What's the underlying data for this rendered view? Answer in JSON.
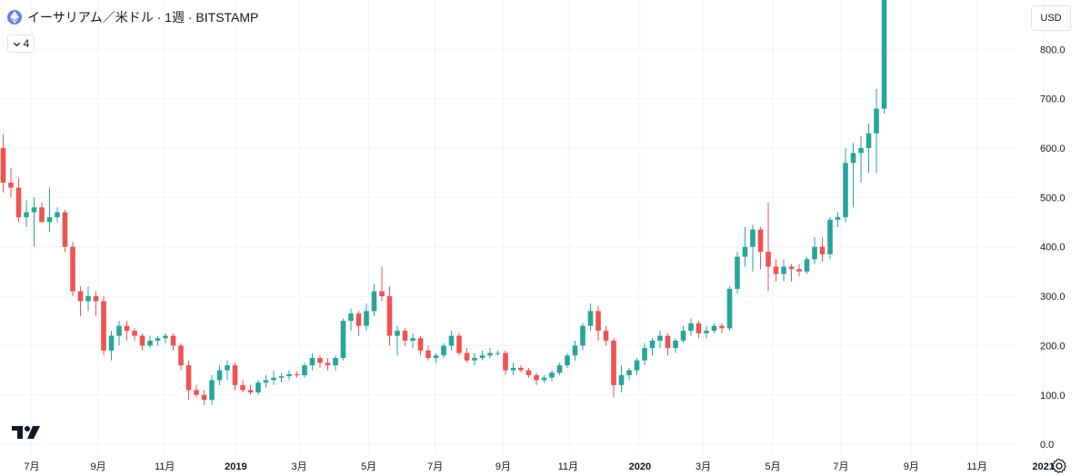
{
  "header": {
    "title": "イーサリアム／米ドル · 1週 · BITSTAMP",
    "indicator_count": "4",
    "currency": "USD"
  },
  "colors": {
    "up": "#26a69a",
    "down": "#ef5350",
    "grid": "#f0f3fa",
    "text": "#131722",
    "coin": "#627eea"
  },
  "icons": {
    "coin": "ethereum-icon",
    "collapse": "chevron-down-icon",
    "logo": "tradingview-logo-icon",
    "settings": "settings-icon"
  },
  "chart_data": {
    "type": "candlestick",
    "interval": "1週",
    "y_axis": {
      "ticks": [
        0,
        100,
        200,
        300,
        400,
        500,
        600,
        700,
        800
      ],
      "labels": [
        "0.0",
        "100.0",
        "200.0",
        "300.0",
        "400.0",
        "500.0",
        "600.0",
        "700.0",
        "800.0"
      ],
      "range": [
        -20,
        900
      ]
    },
    "x_axis": {
      "labels": [
        "7月",
        "9月",
        "11月",
        "2019",
        "3月",
        "5月",
        "7月",
        "9月",
        "11月",
        "2020",
        "3月",
        "5月",
        "7月",
        "9月",
        "11月",
        "2021"
      ],
      "bold": [
        "2019",
        "2020",
        "2021"
      ],
      "label_after_weeks": [
        3.7,
        12.3,
        20.9,
        30.1,
        38.3,
        47.3,
        55.9,
        64.7,
        73.1,
        82.4,
        90.6,
        99.6,
        108.4,
        117.5,
        126.0,
        134.6
      ]
    },
    "ohlc": [
      [
        600,
        628,
        510,
        530
      ],
      [
        530,
        560,
        500,
        520
      ],
      [
        520,
        540,
        450,
        460
      ],
      [
        460,
        495,
        440,
        470
      ],
      [
        470,
        500,
        400,
        480
      ],
      [
        480,
        490,
        450,
        450
      ],
      [
        450,
        520,
        430,
        460
      ],
      [
        460,
        480,
        450,
        470
      ],
      [
        470,
        475,
        390,
        400
      ],
      [
        400,
        410,
        300,
        310
      ],
      [
        310,
        320,
        260,
        290
      ],
      [
        290,
        320,
        270,
        300
      ],
      [
        300,
        310,
        260,
        290
      ],
      [
        290,
        300,
        180,
        190
      ],
      [
        190,
        230,
        170,
        220
      ],
      [
        220,
        250,
        200,
        240
      ],
      [
        240,
        250,
        210,
        230
      ],
      [
        230,
        235,
        210,
        220
      ],
      [
        220,
        225,
        190,
        200
      ],
      [
        200,
        220,
        195,
        210
      ],
      [
        210,
        220,
        200,
        215
      ],
      [
        215,
        225,
        205,
        220
      ],
      [
        220,
        225,
        190,
        200
      ],
      [
        200,
        205,
        150,
        160
      ],
      [
        160,
        170,
        90,
        110
      ],
      [
        110,
        120,
        95,
        100
      ],
      [
        100,
        110,
        80,
        90
      ],
      [
        90,
        140,
        80,
        130
      ],
      [
        130,
        160,
        120,
        150
      ],
      [
        150,
        170,
        130,
        160
      ],
      [
        160,
        165,
        110,
        120
      ],
      [
        120,
        130,
        105,
        110
      ],
      [
        110,
        120,
        100,
        105
      ],
      [
        105,
        130,
        100,
        125
      ],
      [
        125,
        140,
        115,
        130
      ],
      [
        130,
        150,
        120,
        135
      ],
      [
        135,
        145,
        125,
        138
      ],
      [
        138,
        150,
        130,
        142
      ],
      [
        142,
        148,
        135,
        140
      ],
      [
        140,
        165,
        135,
        160
      ],
      [
        160,
        185,
        150,
        175
      ],
      [
        175,
        180,
        155,
        165
      ],
      [
        165,
        175,
        150,
        160
      ],
      [
        160,
        180,
        150,
        175
      ],
      [
        175,
        255,
        170,
        250
      ],
      [
        250,
        275,
        230,
        265
      ],
      [
        265,
        270,
        220,
        240
      ],
      [
        240,
        285,
        230,
        270
      ],
      [
        270,
        325,
        260,
        310
      ],
      [
        310,
        360,
        290,
        300
      ],
      [
        300,
        320,
        200,
        220
      ],
      [
        220,
        240,
        180,
        230
      ],
      [
        230,
        235,
        200,
        210
      ],
      [
        210,
        225,
        195,
        215
      ],
      [
        215,
        220,
        180,
        190
      ],
      [
        190,
        200,
        170,
        175
      ],
      [
        175,
        185,
        165,
        180
      ],
      [
        180,
        205,
        175,
        200
      ],
      [
        200,
        230,
        190,
        220
      ],
      [
        220,
        225,
        180,
        185
      ],
      [
        185,
        195,
        165,
        170
      ],
      [
        170,
        185,
        160,
        175
      ],
      [
        175,
        190,
        170,
        180
      ],
      [
        180,
        195,
        175,
        185
      ],
      [
        185,
        190,
        180,
        185
      ],
      [
        185,
        190,
        140,
        150
      ],
      [
        150,
        165,
        140,
        155
      ],
      [
        155,
        160,
        145,
        150
      ],
      [
        150,
        155,
        135,
        140
      ],
      [
        140,
        145,
        120,
        130
      ],
      [
        130,
        140,
        125,
        135
      ],
      [
        135,
        150,
        128,
        145
      ],
      [
        145,
        165,
        140,
        160
      ],
      [
        160,
        185,
        155,
        180
      ],
      [
        180,
        210,
        170,
        200
      ],
      [
        200,
        245,
        190,
        240
      ],
      [
        240,
        285,
        230,
        270
      ],
      [
        270,
        280,
        210,
        230
      ],
      [
        230,
        240,
        200,
        210
      ],
      [
        210,
        215,
        95,
        120
      ],
      [
        120,
        160,
        105,
        140
      ],
      [
        140,
        155,
        130,
        150
      ],
      [
        150,
        175,
        140,
        170
      ],
      [
        170,
        205,
        160,
        195
      ],
      [
        195,
        215,
        180,
        210
      ],
      [
        210,
        230,
        195,
        220
      ],
      [
        220,
        225,
        180,
        195
      ],
      [
        195,
        215,
        185,
        210
      ],
      [
        210,
        240,
        205,
        230
      ],
      [
        230,
        255,
        220,
        245
      ],
      [
        245,
        250,
        215,
        225
      ],
      [
        225,
        240,
        215,
        230
      ],
      [
        230,
        245,
        225,
        240
      ],
      [
        240,
        245,
        225,
        235
      ],
      [
        235,
        320,
        230,
        315
      ],
      [
        315,
        390,
        305,
        380
      ],
      [
        380,
        440,
        360,
        400
      ],
      [
        400,
        445,
        350,
        435
      ],
      [
        435,
        440,
        355,
        390
      ],
      [
        390,
        490,
        310,
        360
      ],
      [
        360,
        375,
        330,
        345
      ],
      [
        345,
        375,
        330,
        360
      ],
      [
        360,
        365,
        330,
        355
      ],
      [
        355,
        365,
        340,
        350
      ],
      [
        350,
        380,
        345,
        375
      ],
      [
        375,
        420,
        365,
        400
      ],
      [
        400,
        420,
        370,
        385
      ],
      [
        385,
        460,
        375,
        455
      ],
      [
        455,
        470,
        440,
        460
      ],
      [
        460,
        600,
        450,
        570
      ],
      [
        570,
        610,
        480,
        590
      ],
      [
        590,
        625,
        530,
        600
      ],
      [
        600,
        650,
        550,
        630
      ],
      [
        630,
        720,
        550,
        680
      ],
      [
        680,
        900,
        670,
        900
      ]
    ]
  }
}
